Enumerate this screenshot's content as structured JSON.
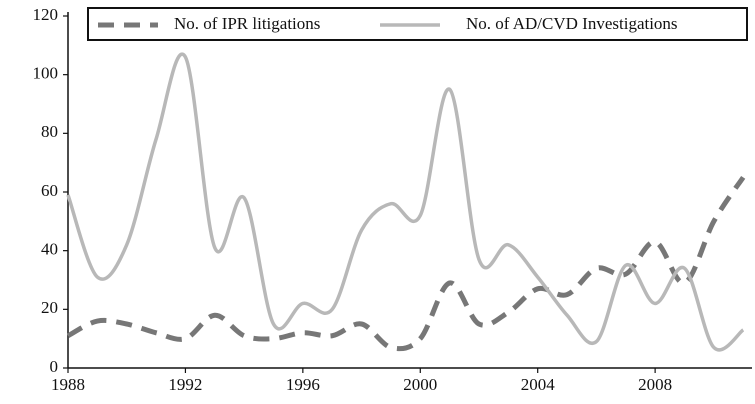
{
  "chart_data": {
    "type": "line",
    "x": [
      1988,
      1989,
      1990,
      1991,
      1992,
      1993,
      1994,
      1995,
      1996,
      1997,
      1998,
      1999,
      2000,
      2001,
      2002,
      2003,
      2004,
      2005,
      2006,
      2007,
      2008,
      2009,
      2010,
      2011
    ],
    "series": [
      {
        "name": "No. of IPR litigations",
        "color": "#777777",
        "dashed": true,
        "values": [
          11,
          16,
          15,
          12,
          10,
          18,
          11,
          10,
          12,
          11,
          15,
          7,
          10,
          29,
          15,
          19,
          27,
          25,
          34,
          32,
          43,
          29,
          50,
          65
        ]
      },
      {
        "name": "No. of AD/CVD Investigations",
        "color": "#b8b8b8",
        "dashed": false,
        "values": [
          59,
          31,
          42,
          78,
          106,
          41,
          58,
          15,
          22,
          20,
          47,
          56,
          52,
          95,
          37,
          42,
          31,
          18,
          9,
          35,
          22,
          34,
          7,
          13
        ]
      }
    ],
    "xlim": [
      1988,
      2011.3
    ],
    "xticks": [
      1988,
      1992,
      1996,
      2000,
      2004,
      2008
    ],
    "ylim": [
      0,
      120
    ],
    "yticks": [
      0,
      20,
      40,
      60,
      80,
      100,
      120
    ],
    "legend": "top",
    "grid": false
  }
}
